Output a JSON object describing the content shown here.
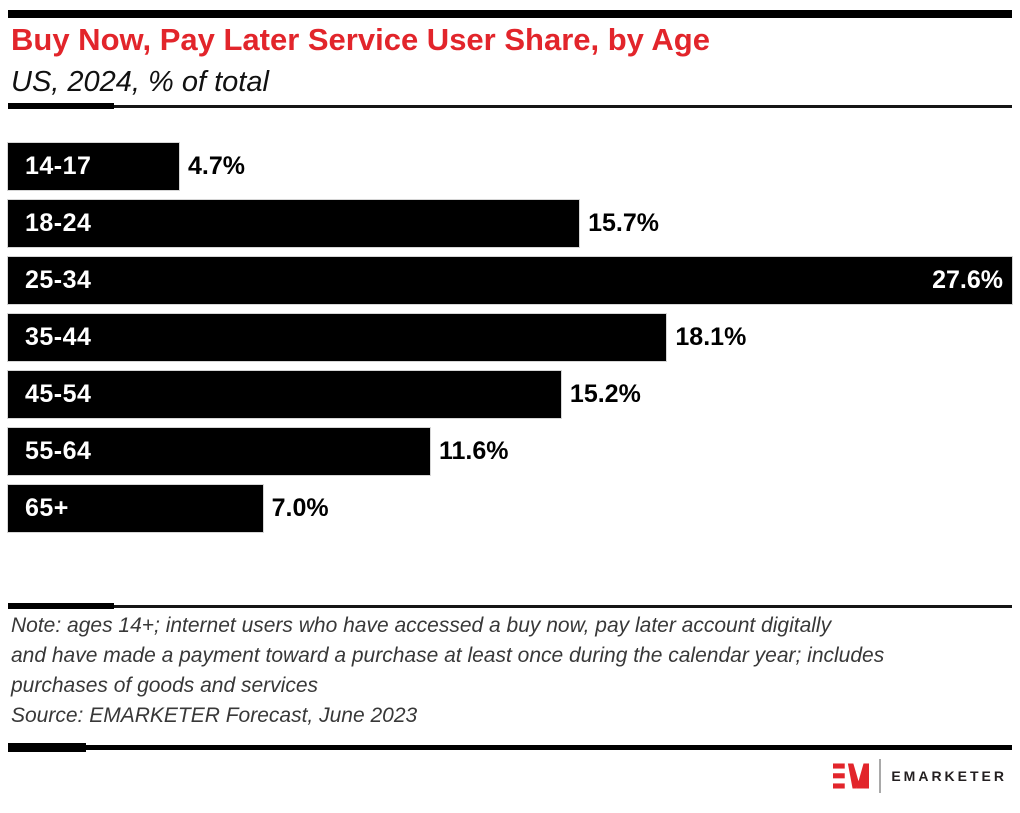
{
  "header": {
    "title": "Buy Now, Pay Later Service User Share, by Age",
    "subtitle": "US, 2024, % of total"
  },
  "chart_data": {
    "type": "bar",
    "orientation": "horizontal",
    "title": "Buy Now, Pay Later Service User Share, by Age",
    "subtitle": "US, 2024, % of total",
    "unit": "% of total",
    "categories": [
      "14-17",
      "18-24",
      "25-34",
      "35-44",
      "45-54",
      "55-64",
      "65+"
    ],
    "values": [
      4.7,
      15.7,
      27.6,
      18.1,
      15.2,
      11.6,
      7.0
    ],
    "value_labels": [
      "4.7%",
      "15.7%",
      "27.6%",
      "18.1%",
      "15.2%",
      "11.6%",
      "7.0%"
    ],
    "label_inside": [
      false,
      false,
      true,
      false,
      false,
      false,
      false
    ],
    "xlim": [
      0,
      27.6
    ],
    "bar_color": "#000000",
    "grid": false,
    "legend": false
  },
  "footer": {
    "note_lines": [
      "Note: ages 14+; internet users who have accessed a buy now, pay later account digitally",
      "and have made a payment toward a purchase at least once during the calendar year; includes",
      "purchases of goods and services"
    ],
    "source": "Source: EMARKETER Forecast, June 2023"
  },
  "logo": {
    "monogram": "EM",
    "wordmark": "EMARKETER"
  },
  "colors": {
    "accent_red": "#e2252b",
    "bar_black": "#000000",
    "text_dark": "#111111",
    "note_gray": "#383838",
    "logo_dark": "#231f20"
  }
}
